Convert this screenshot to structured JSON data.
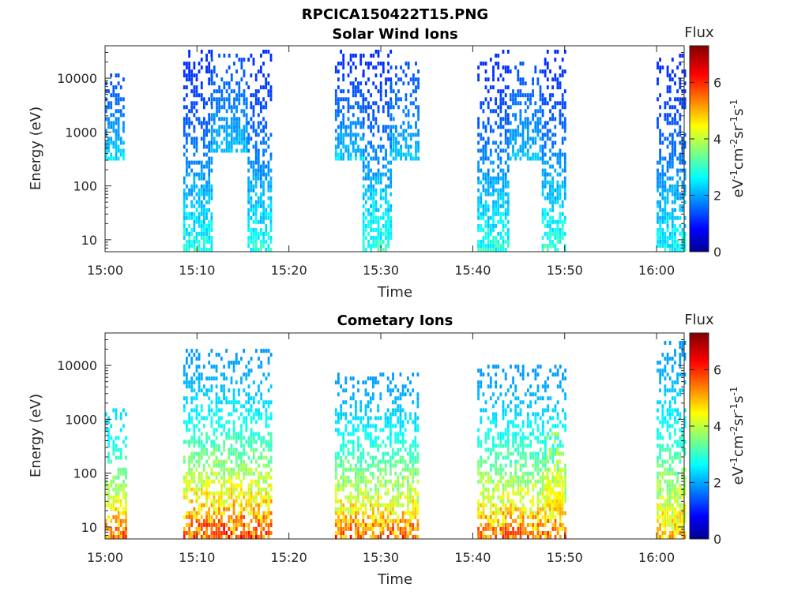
{
  "figure_title": "RPCICA150422T15.PNG",
  "colors": {
    "jet_low": "#00008f",
    "jet_high": "#800000",
    "axis": "#262626"
  },
  "chart_data": [
    {
      "type": "heatmap",
      "title": "Solar Wind Ions",
      "xlabel": "Time",
      "ylabel": "Energy (eV)",
      "x_ticks": [
        "15:00",
        "15:10",
        "15:20",
        "15:30",
        "15:40",
        "15:50",
        "16:00"
      ],
      "x_range": [
        "15:00",
        "16:03"
      ],
      "y_ticks": [
        "10",
        "100",
        "1000",
        "10000"
      ],
      "y_scale": "log",
      "y_range": [
        6,
        40000
      ],
      "colorbar": {
        "title": "Flux",
        "label": "eV-1cm-2sr-1s-1",
        "ticks": [
          "0",
          "2",
          "4",
          "6"
        ],
        "range": [
          0,
          7.3
        ],
        "colormap": "jet"
      },
      "bursts": [
        {
          "start_min": 0,
          "end_min": 2,
          "emin": 300,
          "emax": 12000,
          "fmin": 1.5,
          "fmax": 2.8
        },
        {
          "start_min": 8.5,
          "end_min": 11.5,
          "emin": 6,
          "emax": 35000,
          "fmin": 1.2,
          "fmax": 3.4
        },
        {
          "start_min": 11.5,
          "end_min": 15.5,
          "emin": 400,
          "emax": 30000,
          "fmin": 1.5,
          "fmax": 2.6
        },
        {
          "start_min": 15.5,
          "end_min": 18,
          "emin": 6,
          "emax": 35000,
          "fmin": 1.2,
          "fmax": 3.4
        },
        {
          "start_min": 25,
          "end_min": 28,
          "emin": 300,
          "emax": 35000,
          "fmin": 1.2,
          "fmax": 2.8
        },
        {
          "start_min": 28,
          "end_min": 31,
          "emin": 6,
          "emax": 35000,
          "fmin": 1.2,
          "fmax": 3.6
        },
        {
          "start_min": 31,
          "end_min": 34,
          "emin": 300,
          "emax": 20000,
          "fmin": 1.5,
          "fmax": 2.6
        },
        {
          "start_min": 40.5,
          "end_min": 44,
          "emin": 6,
          "emax": 35000,
          "fmin": 1.2,
          "fmax": 3.4
        },
        {
          "start_min": 44,
          "end_min": 47.5,
          "emin": 300,
          "emax": 20000,
          "fmin": 1.5,
          "fmax": 2.6
        },
        {
          "start_min": 47.5,
          "end_min": 50,
          "emin": 6,
          "emax": 35000,
          "fmin": 1.2,
          "fmax": 3.6
        },
        {
          "start_min": 60,
          "end_min": 63,
          "emin": 6,
          "emax": 30000,
          "fmin": 1.2,
          "fmax": 3.2
        }
      ]
    },
    {
      "type": "heatmap",
      "title": "Cometary Ions",
      "xlabel": "Time",
      "ylabel": "Energy (eV)",
      "x_ticks": [
        "15:00",
        "15:10",
        "15:20",
        "15:30",
        "15:40",
        "15:50",
        "16:00"
      ],
      "x_range": [
        "15:00",
        "16:03"
      ],
      "y_ticks": [
        "10",
        "100",
        "1000",
        "10000"
      ],
      "y_scale": "log",
      "y_range": [
        6,
        40000
      ],
      "colorbar": {
        "title": "Flux",
        "label": "eV-1cm-2sr-1s-1",
        "ticks": [
          "0",
          "2",
          "4",
          "6"
        ],
        "range": [
          0,
          7.3
        ],
        "colormap": "jet"
      },
      "bursts": [
        {
          "start_min": 0,
          "end_min": 2.2,
          "emin": 6,
          "emax": 1500,
          "fmin": 2.5,
          "fmax": 6.5
        },
        {
          "start_min": 8.5,
          "end_min": 18,
          "emin": 6,
          "emax": 20000,
          "fmin": 2.0,
          "fmax": 6.8
        },
        {
          "start_min": 25,
          "end_min": 34,
          "emin": 6,
          "emax": 8000,
          "fmin": 2.0,
          "fmax": 6.5
        },
        {
          "start_min": 40.5,
          "end_min": 50,
          "emin": 6,
          "emax": 10000,
          "fmin": 2.0,
          "fmax": 6.5
        },
        {
          "start_min": 48,
          "end_min": 49.8,
          "emin": 20,
          "emax": 600,
          "fmin": 4.0,
          "fmax": 5.2
        },
        {
          "start_min": 60,
          "end_min": 63,
          "emin": 6,
          "emax": 30000,
          "fmin": 2.0,
          "fmax": 5.8
        }
      ]
    }
  ]
}
